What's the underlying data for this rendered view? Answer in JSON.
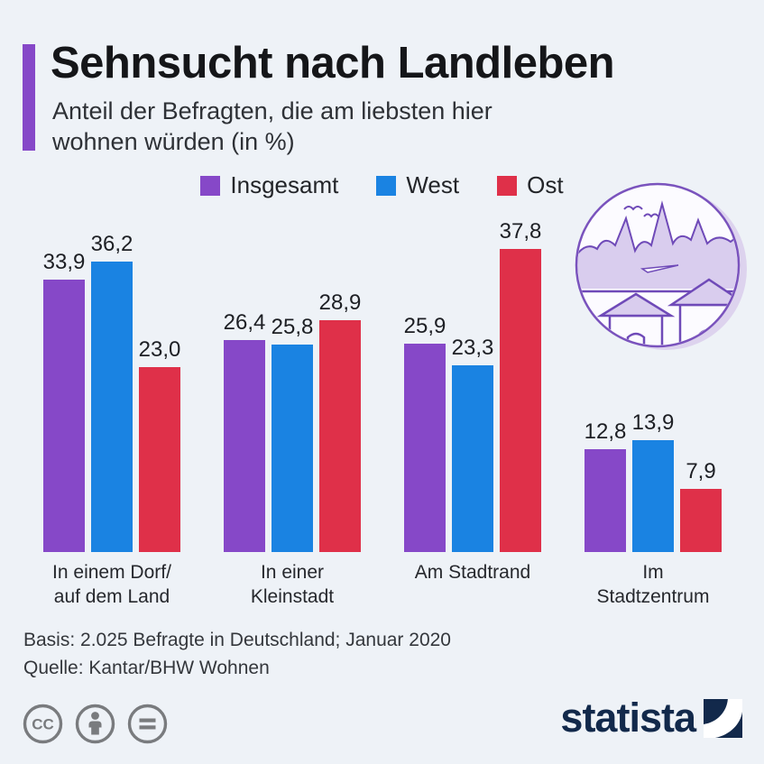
{
  "header": {
    "title": "Sehnsucht nach Landleben",
    "subtitle": "Anteil der Befragten, die am liebsten hier wohnen würden (in %)",
    "accent_color": "#8648c8"
  },
  "chart_data": {
    "type": "bar",
    "title": "Sehnsucht nach Landleben",
    "subtitle": "Anteil der Befragten, die am liebsten hier wohnen würden (in %)",
    "categories": [
      "In einem Dorf/\nauf dem Land",
      "In einer Kleinstadt",
      "Am Stadtrand",
      "Im Stadtzentrum"
    ],
    "series": [
      {
        "name": "Insgesamt",
        "color": "#8648c8",
        "values": [
          33.9,
          26.4,
          25.9,
          12.8
        ]
      },
      {
        "name": "West",
        "color": "#1a83e2",
        "values": [
          36.2,
          25.8,
          23.3,
          13.9
        ]
      },
      {
        "name": "Ost",
        "color": "#df3049",
        "values": [
          23.0,
          28.9,
          37.8,
          7.9
        ]
      }
    ],
    "value_labels_shown": true,
    "value_label_decimal_separator": ",",
    "ylim": [
      0,
      40
    ],
    "grid": false,
    "axis_lines": false,
    "legend_position": "top-center"
  },
  "footer": {
    "basis": "Basis: 2.025 Befragte in Deutschland; Januar 2020",
    "source": "Quelle: Kantar/BHW Wohnen"
  },
  "license": {
    "icons": [
      "cc-icon",
      "by-icon",
      "nd-icon"
    ],
    "color": "#797b7e"
  },
  "branding": {
    "logo_text": "statista",
    "logo_color": "#12294b"
  },
  "illustration": {
    "name": "village-landscape-illustration",
    "outline_color": "#6f4ab8",
    "fill_color": "#d9cdee"
  }
}
